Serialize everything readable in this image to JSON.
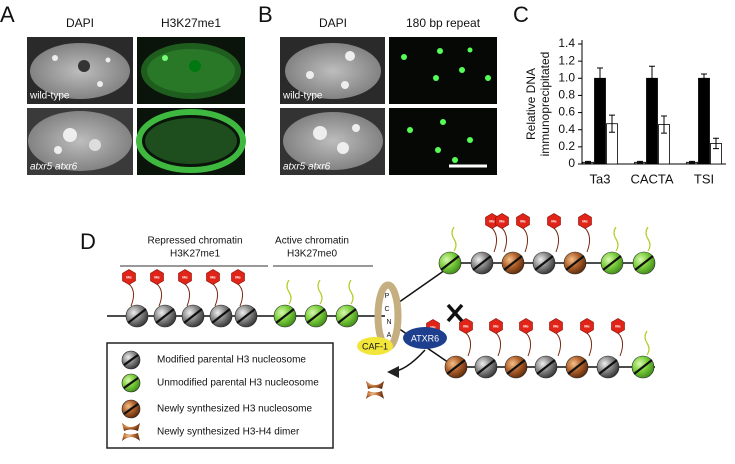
{
  "panel_a": {
    "letter": "A",
    "columns": [
      "DAPI",
      "H3K27me1"
    ],
    "rows": [
      "wild-type",
      "atxr5 atxr6"
    ]
  },
  "panel_b": {
    "letter": "B",
    "columns": [
      "DAPI",
      "180 bp repeat"
    ],
    "rows": [
      "wild-type",
      "atxr5 atxr6"
    ]
  },
  "chart_data": {
    "type": "bar",
    "letter": "C",
    "ylabel": [
      "Relative DNA",
      "immunoprecipitated"
    ],
    "categories": [
      "Ta3",
      "CACTA",
      "TSI"
    ],
    "series": [
      {
        "color": "#9a9a9a",
        "values": [
          0.02,
          0.02,
          0.02
        ],
        "errors": [
          0.01,
          0.01,
          0.01
        ]
      },
      {
        "color": "#000000",
        "values": [
          1,
          1,
          1
        ],
        "errors": [
          0.12,
          0.14,
          0.05
        ]
      },
      {
        "color": "#ffffff",
        "values": [
          0.47,
          0.46,
          0.24
        ],
        "errors": [
          0.1,
          0.1,
          0.06
        ]
      }
    ],
    "ylim": [
      0,
      1.4
    ],
    "yticks": [
      0,
      0.2,
      0.4,
      0.6,
      0.8,
      {
        "value": 1,
        "label": "1.0"
      },
      1.2,
      1.4
    ]
  },
  "diagram": {
    "letter": "D",
    "repressed": [
      "Repressed chromatin",
      "H3K27me1"
    ],
    "active": [
      "Active chromatin",
      "H3K27me0"
    ],
    "me": "Me",
    "pcna": [
      "P",
      "C",
      "N",
      "A"
    ],
    "atxr6": "ATXR6",
    "caf1": "CAF-1",
    "legend": [
      "Modified parental H3 nucleosome",
      "Unmodified parental H3 nucleosome",
      "Newly synthesized H3 nucleosome",
      "Newly synthesized H3-H4 dimer"
    ]
  }
}
